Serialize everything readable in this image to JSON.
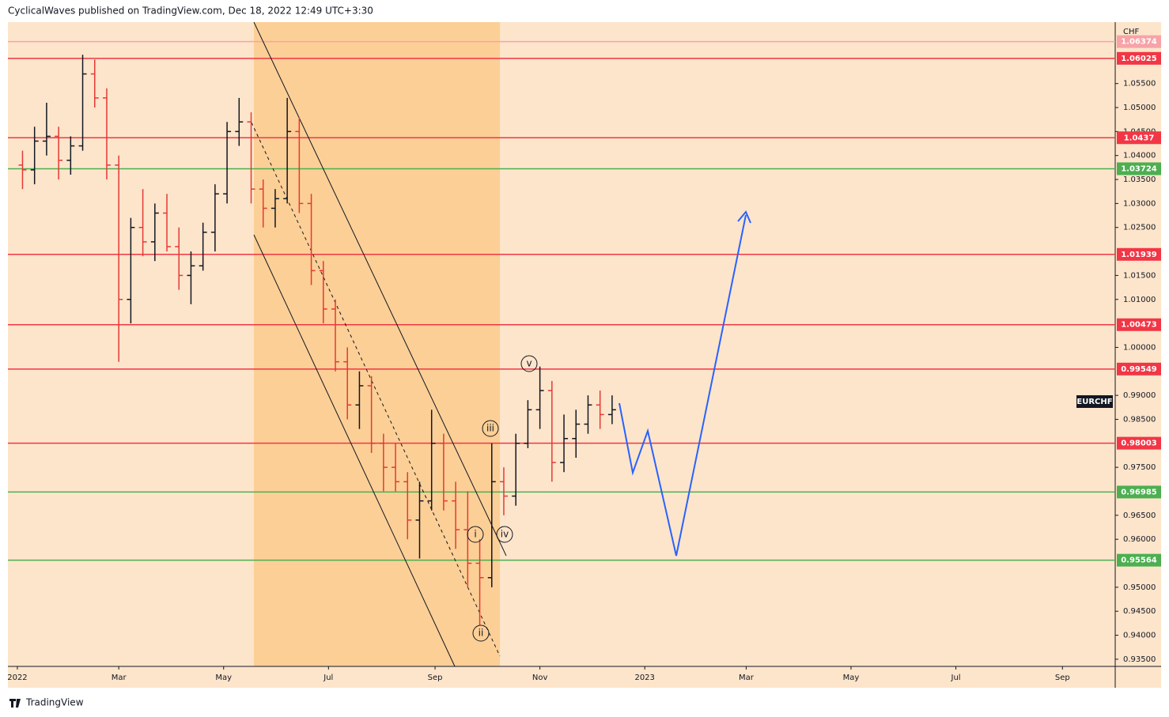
{
  "header": "CyclicalWaves published on TradingView.com, Dec 18, 2022 12:49 UTC+3:30",
  "footer": "TradingView",
  "chart_data": {
    "type": "ohlc",
    "symbol": "EURCHF",
    "currency": "CHF",
    "up_color": "#131722",
    "down_color": "#e53935",
    "xlim": [
      -5.5,
      638.7
    ],
    "ylim": [
      0.9335,
      1.0678
    ],
    "xticks": [
      {
        "value": 0,
        "label": "2022"
      },
      {
        "value": 59,
        "label": "Mar"
      },
      {
        "value": 120,
        "label": "May"
      },
      {
        "value": 181,
        "label": "Jul"
      },
      {
        "value": 243,
        "label": "Sep"
      },
      {
        "value": 304,
        "label": "Nov"
      },
      {
        "value": 365,
        "label": "2023"
      },
      {
        "value": 424,
        "label": "Mar"
      },
      {
        "value": 485,
        "label": "May"
      },
      {
        "value": 546,
        "label": "Jul"
      },
      {
        "value": 608,
        "label": "Sep"
      }
    ],
    "yticks": [
      {
        "value": 1.055,
        "label": "1.05500"
      },
      {
        "value": 1.05,
        "label": "1.05000"
      },
      {
        "value": 1.045,
        "label": "1.04500"
      },
      {
        "value": 1.04,
        "label": "1.04000"
      },
      {
        "value": 1.035,
        "label": "1.03500"
      },
      {
        "value": 1.03,
        "label": "1.03000"
      },
      {
        "value": 1.025,
        "label": "1.02500"
      },
      {
        "value": 1.015,
        "label": "1.01500"
      },
      {
        "value": 1.01,
        "label": "1.01000"
      },
      {
        "value": 1.0,
        "label": "1.00000"
      },
      {
        "value": 0.99,
        "label": "0.99000"
      },
      {
        "value": 0.985,
        "label": "0.98500"
      },
      {
        "value": 0.975,
        "label": "0.97500"
      },
      {
        "value": 0.965,
        "label": "0.96500"
      },
      {
        "value": 0.96,
        "label": "0.96000"
      },
      {
        "value": 0.95,
        "label": "0.95000"
      },
      {
        "value": 0.945,
        "label": "0.94500"
      },
      {
        "value": 0.94,
        "label": "0.94000"
      },
      {
        "value": 0.935,
        "label": "0.93500"
      }
    ],
    "levels": [
      {
        "value": 1.06374,
        "color": "#f7a3a8"
      },
      {
        "value": 1.06025,
        "color": "#f23645"
      },
      {
        "value": 1.0437,
        "color": "#f23645"
      },
      {
        "value": 1.03724,
        "color": "#4caf50"
      },
      {
        "value": 1.01939,
        "color": "#f23645"
      },
      {
        "value": 1.00473,
        "color": "#f23645"
      },
      {
        "value": 0.99549,
        "color": "#f23645"
      },
      {
        "value": 0.98003,
        "color": "#f23645"
      },
      {
        "value": 0.96985,
        "color": "#4caf50"
      },
      {
        "value": 0.95564,
        "color": "#4caf50"
      }
    ],
    "annotations": [
      "v",
      "iii",
      "i",
      "iv",
      "ii"
    ],
    "x": [
      3,
      10,
      17,
      24,
      31,
      38,
      45,
      52,
      59,
      66,
      73,
      80,
      87,
      94,
      101,
      108,
      115,
      122,
      129,
      136,
      143,
      150,
      157,
      164,
      171,
      178,
      185,
      192,
      199,
      206,
      213,
      220,
      227,
      234,
      241,
      248,
      255,
      262,
      269,
      276,
      283,
      290,
      297,
      304,
      311,
      318,
      325,
      332,
      339,
      346
    ],
    "open": [
      1.038,
      1.037,
      1.043,
      1.044,
      1.039,
      1.042,
      1.057,
      1.052,
      1.038,
      1.01,
      1.025,
      1.022,
      1.028,
      1.021,
      1.015,
      1.017,
      1.024,
      1.032,
      1.045,
      1.047,
      1.033,
      1.029,
      1.031,
      1.045,
      1.03,
      1.016,
      1.008,
      0.997,
      0.988,
      0.992,
      0.98,
      0.975,
      0.972,
      0.964,
      0.968,
      0.98,
      0.968,
      0.962,
      0.955,
      0.952,
      0.972,
      0.969,
      0.98,
      0.987,
      0.991,
      0.976,
      0.981,
      0.984,
      0.988,
      0.986
    ],
    "high": [
      1.041,
      1.046,
      1.051,
      1.046,
      1.044,
      1.061,
      1.06,
      1.054,
      1.04,
      1.027,
      1.033,
      1.03,
      1.032,
      1.025,
      1.02,
      1.026,
      1.034,
      1.047,
      1.052,
      1.049,
      1.035,
      1.033,
      1.052,
      1.048,
      1.032,
      1.018,
      1.01,
      1.0,
      0.995,
      0.994,
      0.982,
      0.98,
      0.974,
      0.972,
      0.987,
      0.982,
      0.972,
      0.97,
      0.96,
      0.98,
      0.975,
      0.982,
      0.989,
      0.996,
      0.993,
      0.986,
      0.987,
      0.99,
      0.991,
      0.99
    ],
    "low": [
      1.033,
      1.034,
      1.04,
      1.035,
      1.036,
      1.041,
      1.05,
      1.035,
      0.997,
      1.005,
      1.019,
      1.018,
      1.02,
      1.012,
      1.009,
      1.016,
      1.02,
      1.03,
      1.042,
      1.03,
      1.025,
      1.025,
      1.03,
      1.028,
      1.013,
      1.005,
      0.995,
      0.985,
      0.983,
      0.978,
      0.97,
      0.97,
      0.96,
      0.956,
      0.966,
      0.966,
      0.958,
      0.95,
      0.942,
      0.95,
      0.965,
      0.967,
      0.979,
      0.983,
      0.972,
      0.974,
      0.977,
      0.982,
      0.983,
      0.984
    ],
    "close": [
      1.037,
      1.043,
      1.044,
      1.039,
      1.042,
      1.057,
      1.052,
      1.038,
      1.01,
      1.025,
      1.022,
      1.028,
      1.021,
      1.015,
      1.017,
      1.024,
      1.032,
      1.045,
      1.047,
      1.033,
      1.029,
      1.031,
      1.045,
      1.03,
      1.016,
      1.008,
      0.997,
      0.988,
      0.992,
      0.98,
      0.975,
      0.972,
      0.964,
      0.968,
      0.98,
      0.968,
      0.962,
      0.955,
      0.952,
      0.972,
      0.969,
      0.98,
      0.987,
      0.991,
      0.976,
      0.981,
      0.984,
      0.988,
      0.986,
      0.987
    ]
  }
}
